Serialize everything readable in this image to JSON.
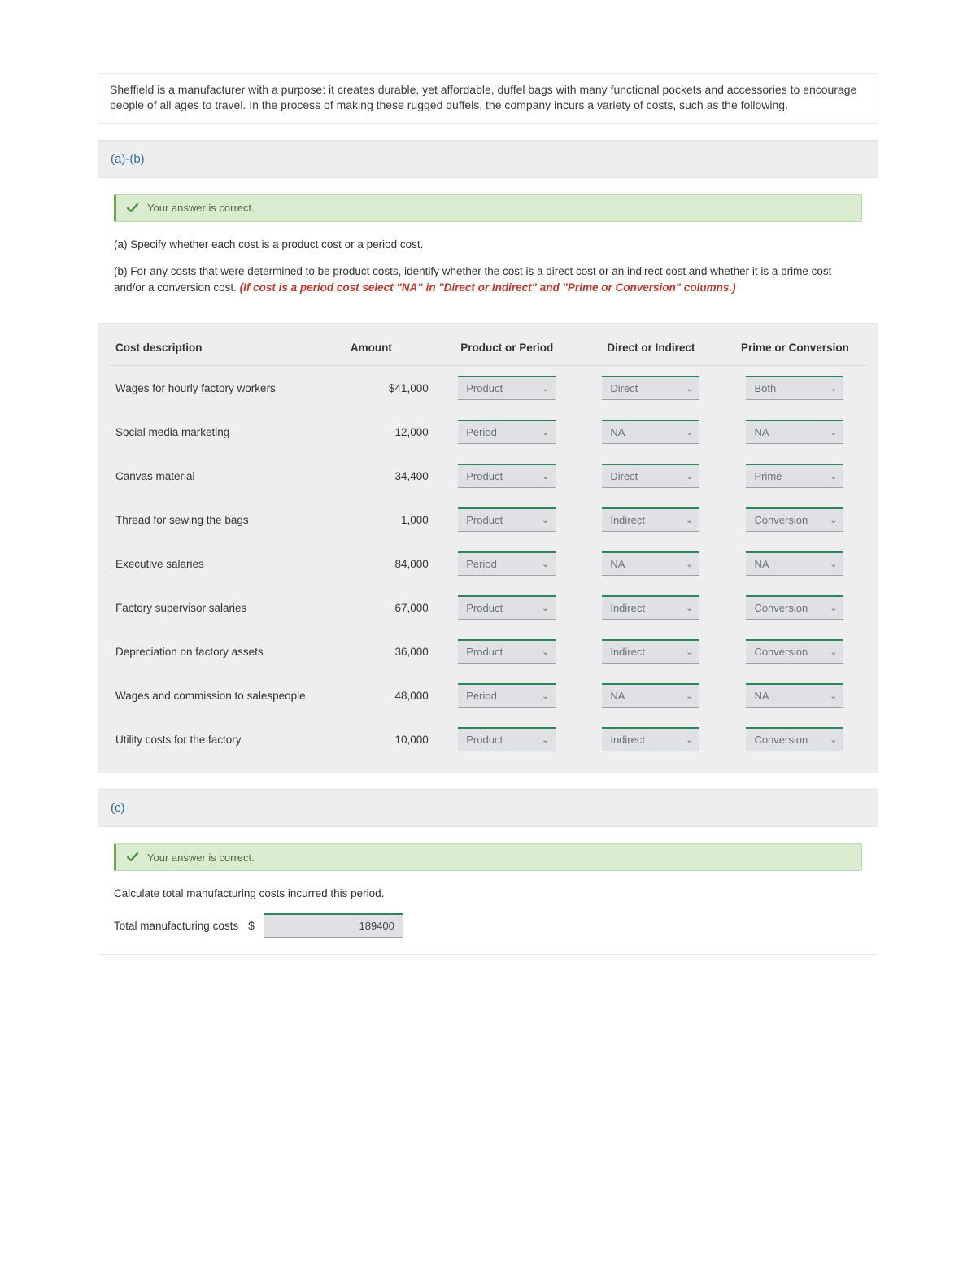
{
  "intro": "Sheffield is a manufacturer with a purpose: it creates durable, yet affordable, duffel bags with many functional pockets and accessories to encourage people of all ages to travel. In the process of making these rugged duffels, the company incurs a variety of costs, such as the following.",
  "section_ab": {
    "header": "(a)-(b)",
    "correct_msg": "Your answer is correct.",
    "q_a": "(a) Specify whether each cost is a product cost or a period cost.",
    "q_b_lead": "(b) For any costs that were determined to be product costs, identify whether the cost is a direct cost or an indirect cost and whether it is a prime cost and/or a conversion cost. ",
    "q_b_hint": "(If cost is a period cost select \"NA\" in \"Direct or Indirect\" and \"Prime or Conversion\" columns.)"
  },
  "table": {
    "headers": {
      "desc": "Cost description",
      "amount": "Amount",
      "pp": "Product or Period",
      "di": "Direct or Indirect",
      "pc": "Prime or Conversion"
    },
    "rows": [
      {
        "desc": "Wages for hourly factory workers",
        "amount": "$41,000",
        "pp": "Product",
        "di": "Direct",
        "pc": "Both"
      },
      {
        "desc": "Social media marketing",
        "amount": "12,000",
        "pp": "Period",
        "di": "NA",
        "pc": "NA"
      },
      {
        "desc": "Canvas material",
        "amount": "34,400",
        "pp": "Product",
        "di": "Direct",
        "pc": "Prime"
      },
      {
        "desc": "Thread for sewing the bags",
        "amount": "1,000",
        "pp": "Product",
        "di": "Indirect",
        "pc": "Conversion"
      },
      {
        "desc": "Executive salaries",
        "amount": "84,000",
        "pp": "Period",
        "di": "NA",
        "pc": "NA"
      },
      {
        "desc": "Factory supervisor salaries",
        "amount": "67,000",
        "pp": "Product",
        "di": "Indirect",
        "pc": "Conversion"
      },
      {
        "desc": "Depreciation on factory assets",
        "amount": "36,000",
        "pp": "Product",
        "di": "Indirect",
        "pc": "Conversion"
      },
      {
        "desc": "Wages and commission to salespeople",
        "amount": "48,000",
        "pp": "Period",
        "di": "NA",
        "pc": "NA"
      },
      {
        "desc": "Utility costs for the factory",
        "amount": "10,000",
        "pp": "Product",
        "di": "Indirect",
        "pc": "Conversion"
      }
    ]
  },
  "section_c": {
    "header": "(c)",
    "correct_msg": "Your answer is correct.",
    "prompt": "Calculate total manufacturing costs incurred this period.",
    "row_label": "Total manufacturing costs",
    "currency": "$",
    "value": "189400"
  },
  "style": {
    "accent_link": "#2a6ea6",
    "correct_bg": "#d9ecd0",
    "correct_border": "#6aa84f",
    "dropdown_bg": "#dfe1e4",
    "dropdown_top_border": "#2f855a",
    "hint_color": "#c0392b",
    "panel_bg": "#eeeeee"
  }
}
